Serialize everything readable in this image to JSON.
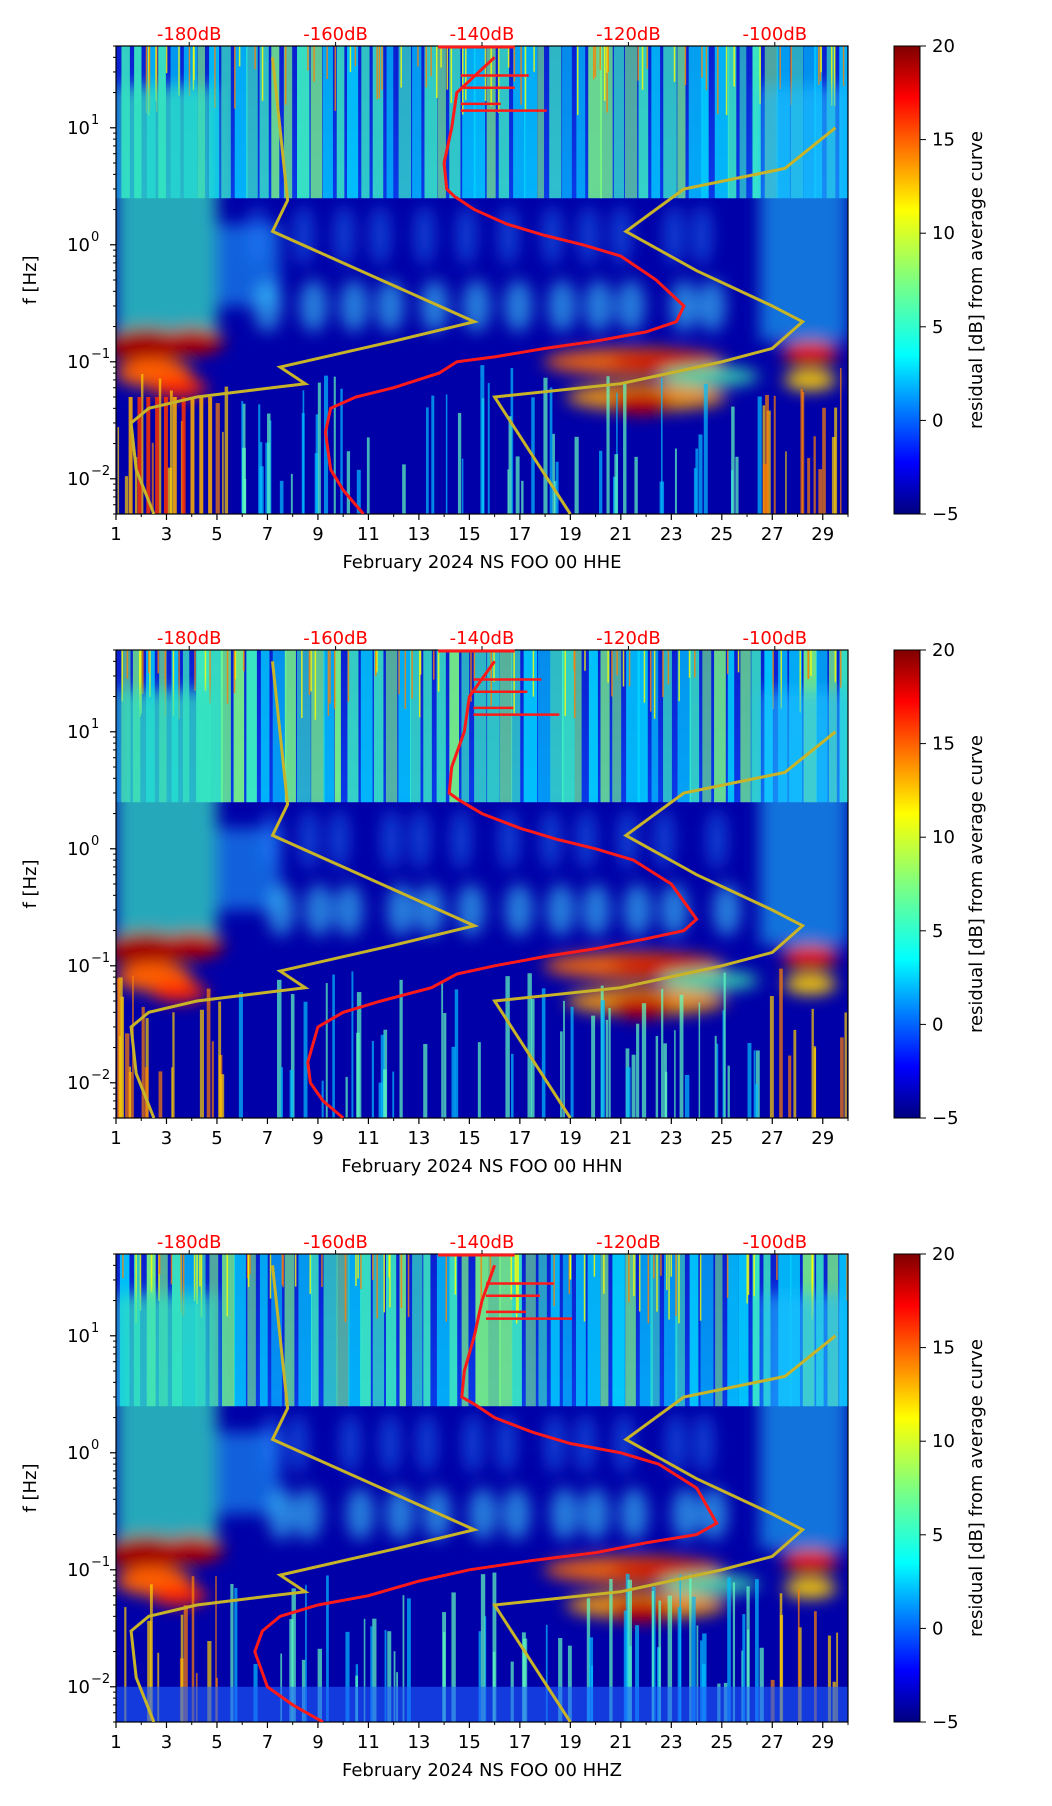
{
  "figure": {
    "colormap": "jet",
    "colorbar": {
      "label": "residual [dB] from average curve",
      "min": -5,
      "max": 20,
      "ticks": [
        "20",
        "15",
        "10",
        "5",
        "0",
        "−5"
      ]
    },
    "top_axis_labels": [
      "-180dB",
      "-160dB",
      "-140dB",
      "-120dB",
      "-100dB"
    ],
    "x_ticks": [
      "1",
      "3",
      "5",
      "7",
      "9",
      "11",
      "13",
      "15",
      "17",
      "19",
      "21",
      "23",
      "25",
      "27",
      "29"
    ],
    "y_ticks": [
      "10",
      "10",
      "10"
    ],
    "y_tick_exponents": [
      "1",
      "0",
      "−1",
      "−2"
    ],
    "ylabel": "f [Hz]",
    "curve_colors": {
      "median": "#ff1a1a",
      "noise_model": "#c8b428"
    }
  },
  "chart_data": [
    {
      "type": "heatmap",
      "xlabel": "February 2024 NS FOO 00 HHE",
      "ylabel": "f [Hz]",
      "xlim": [
        1,
        30
      ],
      "ylim": [
        0.005,
        50
      ],
      "y_scale": "log",
      "top_axis": {
        "labels": [
          "-180dB",
          "-160dB",
          "-140dB",
          "-120dB",
          "-100dB"
        ],
        "range_dB": [
          -190,
          -90
        ]
      },
      "colorbar": {
        "label": "residual [dB] from average curve",
        "range": [
          -5,
          20
        ]
      },
      "median_curve": {
        "x": [
          16,
          14.5,
          14.3,
          14.0,
          14.1,
          14.4,
          15.2,
          16.5,
          18.0,
          19.5,
          21.0,
          22.4,
          23.5,
          23.2,
          22.0,
          20.0,
          18.0,
          16.0,
          14.5,
          13.8,
          12.0,
          10.5,
          9.5,
          9.3,
          9.5,
          10.0,
          10.8
        ],
        "y": [
          40,
          20,
          10,
          5,
          3,
          2.6,
          2.0,
          1.5,
          1.2,
          1.0,
          0.8,
          0.5,
          0.3,
          0.22,
          0.18,
          0.15,
          0.13,
          0.11,
          0.1,
          0.08,
          0.06,
          0.05,
          0.04,
          0.025,
          0.012,
          0.008,
          0.005
        ]
      },
      "noise_curves": [
        {
          "x": [
            2.5,
            1.8,
            1.6,
            2.3,
            4.2,
            8.5,
            7.5,
            12.0,
            15.2,
            7.2,
            7.8,
            7.2
          ],
          "y": [
            0.005,
            0.012,
            0.03,
            0.04,
            0.05,
            0.065,
            0.09,
            0.15,
            0.22,
            1.3,
            2.4,
            40
          ]
        },
        {
          "x": [
            19.0,
            16.0,
            21.0,
            25.0,
            27.0,
            28.2,
            27.0,
            24.0,
            21.2,
            23.5,
            27.5,
            29.5
          ],
          "y": [
            0.005,
            0.05,
            0.065,
            0.1,
            0.13,
            0.22,
            0.3,
            0.6,
            1.3,
            3.0,
            4.5,
            10
          ]
        }
      ]
    },
    {
      "type": "heatmap",
      "xlabel": "February 2024 NS FOO 00 HHN",
      "ylabel": "f [Hz]",
      "xlim": [
        1,
        30
      ],
      "ylim": [
        0.005,
        50
      ],
      "y_scale": "log",
      "top_axis": {
        "labels": [
          "-180dB",
          "-160dB",
          "-140dB",
          "-120dB",
          "-100dB"
        ],
        "range_dB": [
          -190,
          -90
        ]
      },
      "colorbar": {
        "label": "residual [dB] from average curve",
        "range": [
          -5,
          20
        ]
      },
      "median_curve": {
        "x": [
          16,
          15.0,
          14.8,
          14.3,
          14.2,
          14.6,
          15.5,
          17.0,
          18.5,
          20.0,
          21.5,
          23.0,
          24.0,
          23.5,
          22.0,
          20.0,
          18.0,
          16.0,
          14.5,
          13.5,
          11.5,
          10.0,
          9.0,
          8.6,
          8.7,
          9.2,
          10.0
        ],
        "y": [
          40,
          20,
          10,
          5,
          3,
          2.6,
          2.0,
          1.5,
          1.2,
          1.0,
          0.8,
          0.5,
          0.25,
          0.2,
          0.17,
          0.14,
          0.12,
          0.1,
          0.085,
          0.065,
          0.05,
          0.04,
          0.03,
          0.015,
          0.01,
          0.007,
          0.005
        ]
      },
      "noise_curves": [
        {
          "x": [
            2.5,
            1.8,
            1.6,
            2.3,
            4.2,
            8.5,
            7.5,
            12.0,
            15.2,
            7.2,
            7.8,
            7.2
          ],
          "y": [
            0.005,
            0.012,
            0.03,
            0.04,
            0.05,
            0.065,
            0.09,
            0.15,
            0.22,
            1.3,
            2.4,
            40
          ]
        },
        {
          "x": [
            19.0,
            16.0,
            21.0,
            25.0,
            27.0,
            28.2,
            27.0,
            24.0,
            21.2,
            23.5,
            27.5,
            29.5
          ],
          "y": [
            0.005,
            0.05,
            0.065,
            0.1,
            0.13,
            0.22,
            0.3,
            0.6,
            1.3,
            3.0,
            4.5,
            10
          ]
        }
      ]
    },
    {
      "type": "heatmap",
      "xlabel": "February 2024 NS FOO 00 HHZ",
      "ylabel": "f [Hz]",
      "xlim": [
        1,
        30
      ],
      "ylim": [
        0.005,
        50
      ],
      "y_scale": "log",
      "top_axis": {
        "labels": [
          "-180dB",
          "-160dB",
          "-140dB",
          "-120dB",
          "-100dB"
        ],
        "range_dB": [
          -190,
          -90
        ]
      },
      "colorbar": {
        "label": "residual [dB] from average curve",
        "range": [
          -5,
          20
        ]
      },
      "median_curve": {
        "x": [
          16,
          15.5,
          15.2,
          14.8,
          14.7,
          15.2,
          16.0,
          17.5,
          19.0,
          21.0,
          22.5,
          24.0,
          24.8,
          24.0,
          22.0,
          20.0,
          17.5,
          15.0,
          13.0,
          11.0,
          9.0,
          7.5,
          6.8,
          6.5,
          7.0,
          8.0,
          9.2
        ],
        "y": [
          40,
          20,
          10,
          5,
          3,
          2.6,
          2.0,
          1.5,
          1.2,
          1.0,
          0.8,
          0.5,
          0.25,
          0.2,
          0.17,
          0.14,
          0.12,
          0.1,
          0.08,
          0.06,
          0.05,
          0.04,
          0.03,
          0.02,
          0.01,
          0.007,
          0.005
        ]
      },
      "noise_curves": [
        {
          "x": [
            2.5,
            1.8,
            1.6,
            2.3,
            4.2,
            8.5,
            7.5,
            12.0,
            15.2,
            7.2,
            7.8,
            7.2
          ],
          "y": [
            0.005,
            0.012,
            0.03,
            0.04,
            0.05,
            0.065,
            0.09,
            0.15,
            0.22,
            1.3,
            2.4,
            40
          ]
        },
        {
          "x": [
            19.0,
            16.0,
            21.0,
            25.0,
            27.0,
            28.2,
            27.0,
            24.0,
            21.2,
            23.5,
            27.5,
            29.5
          ],
          "y": [
            0.005,
            0.05,
            0.065,
            0.1,
            0.13,
            0.22,
            0.3,
            0.6,
            1.3,
            3.0,
            4.5,
            10
          ]
        }
      ]
    }
  ]
}
